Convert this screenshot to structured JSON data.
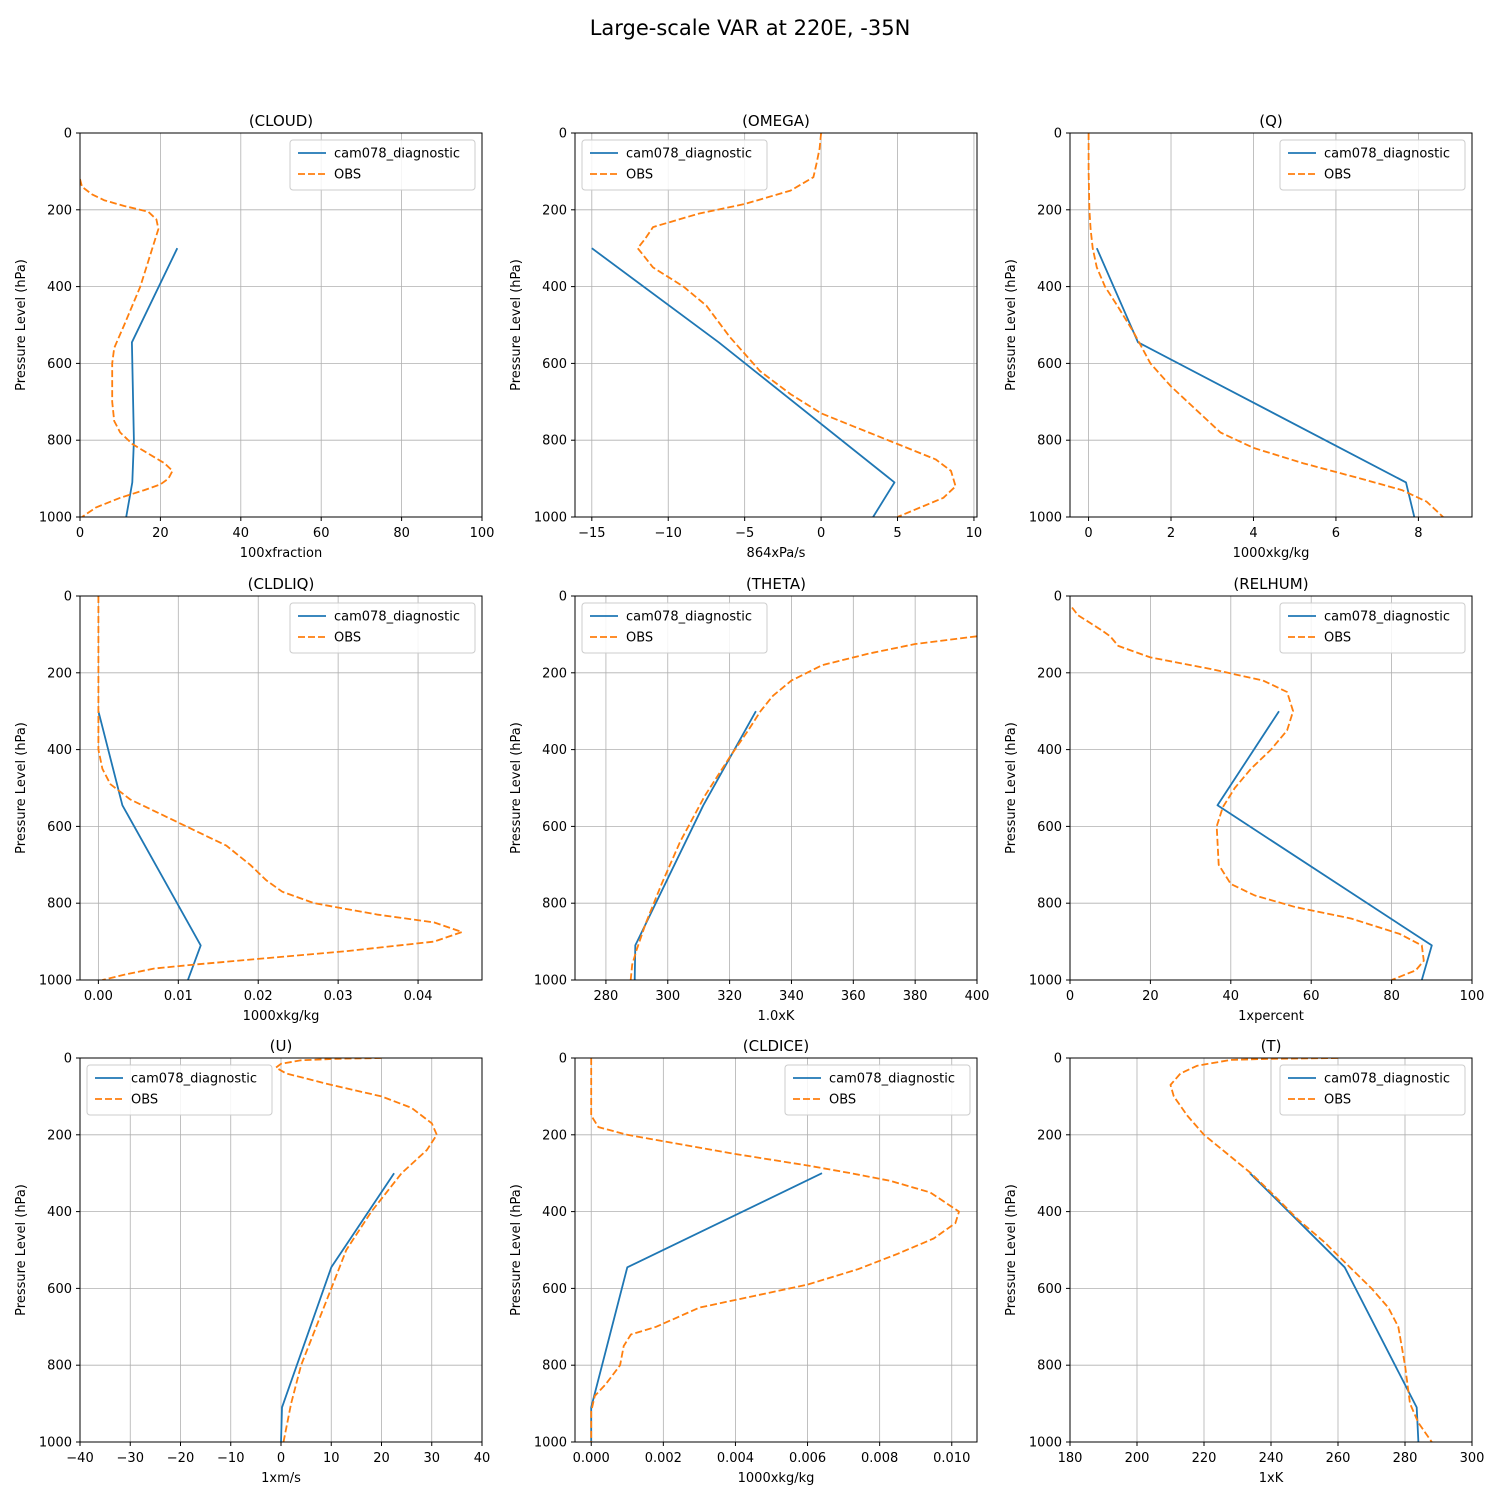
{
  "figure": {
    "title": "Large-scale VAR at 220E, -35N"
  },
  "colors": {
    "model": "#1f77b4",
    "obs": "#ff7f0e",
    "grid": "#b0b0b0"
  },
  "chart_data": [
    {
      "type": "line",
      "title": "(CLOUD)",
      "xlabel": "100xfraction",
      "ylabel": "Pressure Level (hPa)",
      "xlim": [
        0,
        100
      ],
      "ylim": [
        1000,
        0
      ],
      "xticks": [
        0,
        20,
        40,
        60,
        80,
        100
      ],
      "xtick_labels": [
        "0",
        "20",
        "40",
        "60",
        "80",
        "100"
      ],
      "yticks": [
        0,
        200,
        400,
        600,
        800,
        1000
      ],
      "ytick_labels": [
        "0",
        "200",
        "400",
        "600",
        "800",
        "1000"
      ],
      "grid": true,
      "legend": "upper right",
      "series": [
        {
          "name": "cam078_diagnostic",
          "style": "solid",
          "x": [
            24.2,
            12.9,
            13.4,
            13.0,
            11.5
          ],
          "y": [
            300,
            545,
            800,
            910,
            1000
          ]
        },
        {
          "name": "OBS",
          "style": "dashed",
          "x": [
            0.0,
            0.5,
            3,
            6,
            11,
            17,
            19,
            19.5,
            15,
            11,
            8.5,
            8,
            8,
            8.5,
            10,
            13,
            17,
            21,
            23,
            22,
            20,
            16,
            10,
            4,
            0.5
          ],
          "y": [
            120,
            140,
            160,
            175,
            190,
            205,
            225,
            250,
            400,
            500,
            560,
            600,
            700,
            750,
            780,
            810,
            835,
            860,
            880,
            900,
            915,
            930,
            950,
            975,
            1000
          ]
        }
      ]
    },
    {
      "type": "line",
      "title": "(OMEGA)",
      "xlabel": "864xPa/s",
      "ylabel": "Pressure Level (hPa)",
      "xlim": [
        -16.1,
        10.2
      ],
      "ylim": [
        1000,
        0
      ],
      "xticks": [
        -15,
        -10,
        -5,
        0,
        5,
        10
      ],
      "xtick_labels": [
        "−15",
        "−10",
        "−5",
        "0",
        "5",
        "10"
      ],
      "yticks": [
        0,
        200,
        400,
        600,
        800,
        1000
      ],
      "ytick_labels": [
        "0",
        "200",
        "400",
        "600",
        "800",
        "1000"
      ],
      "grid": true,
      "legend": "upper left",
      "series": [
        {
          "name": "cam078_diagnostic",
          "style": "solid",
          "x": [
            -15.0,
            -6.7,
            4.8,
            3.4
          ],
          "y": [
            300,
            545,
            910,
            1000
          ]
        },
        {
          "name": "OBS",
          "style": "dashed",
          "x": [
            0.0,
            -0.1,
            -0.3,
            -0.5,
            -2.0,
            -5.0,
            -8.0,
            -11.0,
            -11.5,
            -12.0,
            -11.0,
            -9.0,
            -7.5,
            -6.0,
            -4.0,
            -2.0,
            0.0,
            2.5,
            5.0,
            7.5,
            8.5,
            8.8,
            8.0,
            6.5,
            5.0
          ],
          "y": [
            0,
            40,
            80,
            115,
            150,
            185,
            210,
            245,
            275,
            300,
            350,
            400,
            450,
            530,
            620,
            680,
            730,
            770,
            810,
            850,
            880,
            920,
            950,
            975,
            1000
          ]
        }
      ]
    },
    {
      "type": "line",
      "title": "(Q)",
      "xlabel": "1000xkg/kg",
      "ylabel": "Pressure Level (hPa)",
      "xlim": [
        -0.45,
        9.3
      ],
      "ylim": [
        1000,
        0
      ],
      "xticks": [
        0,
        2,
        4,
        6,
        8
      ],
      "xtick_labels": [
        "0",
        "2",
        "4",
        "6",
        "8"
      ],
      "yticks": [
        0,
        200,
        400,
        600,
        800,
        1000
      ],
      "ytick_labels": [
        "0",
        "200",
        "400",
        "600",
        "800",
        "1000"
      ],
      "grid": true,
      "legend": "upper right",
      "series": [
        {
          "name": "cam078_diagnostic",
          "style": "solid",
          "x": [
            0.2,
            1.2,
            7.7,
            7.9
          ],
          "y": [
            300,
            545,
            910,
            1000
          ]
        },
        {
          "name": "OBS",
          "style": "dashed",
          "x": [
            0.0,
            0.0,
            0.02,
            0.05,
            0.1,
            0.2,
            0.4,
            0.7,
            1.1,
            1.5,
            2.0,
            2.6,
            3.2,
            4.0,
            5.2,
            6.6,
            7.6,
            8.2,
            8.6
          ],
          "y": [
            0,
            100,
            200,
            250,
            300,
            350,
            400,
            450,
            520,
            600,
            660,
            720,
            780,
            820,
            860,
            900,
            930,
            960,
            1000
          ]
        }
      ]
    },
    {
      "type": "line",
      "title": "(CLDLIQ)",
      "xlabel": "1000xkg/kg",
      "ylabel": "Pressure Level (hPa)",
      "xlim": [
        -0.0023,
        0.048
      ],
      "ylim": [
        1000,
        0
      ],
      "xticks": [
        0,
        0.01,
        0.02,
        0.03,
        0.04
      ],
      "xtick_labels": [
        "0.00",
        "0.01",
        "0.02",
        "0.03",
        "0.04"
      ],
      "yticks": [
        0,
        200,
        400,
        600,
        800,
        1000
      ],
      "ytick_labels": [
        "0",
        "200",
        "400",
        "600",
        "800",
        "1000"
      ],
      "grid": true,
      "legend": "upper right",
      "series": [
        {
          "name": "cam078_diagnostic",
          "style": "solid",
          "x": [
            0.0,
            0.003,
            0.0128,
            0.0112
          ],
          "y": [
            300,
            545,
            910,
            1000
          ]
        },
        {
          "name": "OBS",
          "style": "dashed",
          "x": [
            0.0,
            0.0,
            0.0,
            0.0005,
            0.0015,
            0.004,
            0.009,
            0.013,
            0.016,
            0.019,
            0.021,
            0.023,
            0.027,
            0.035,
            0.042,
            0.0455,
            0.042,
            0.031,
            0.02,
            0.012,
            0.007,
            0.0035,
            0.0005
          ],
          "y": [
            0,
            200,
            400,
            450,
            490,
            530,
            580,
            620,
            650,
            700,
            740,
            770,
            800,
            830,
            850,
            875,
            900,
            925,
            945,
            960,
            970,
            985,
            1000
          ]
        }
      ]
    },
    {
      "type": "line",
      "title": "(THETA)",
      "xlabel": "1.0xK",
      "ylabel": "Pressure Level (hPa)",
      "xlim": [
        270,
        400
      ],
      "ylim": [
        1000,
        0
      ],
      "xticks": [
        280,
        300,
        320,
        340,
        360,
        380,
        400
      ],
      "xtick_labels": [
        "280",
        "300",
        "320",
        "340",
        "360",
        "380",
        "400"
      ],
      "yticks": [
        0,
        200,
        400,
        600,
        800,
        1000
      ],
      "ytick_labels": [
        "0",
        "200",
        "400",
        "600",
        "800",
        "1000"
      ],
      "grid": true,
      "legend": "upper left",
      "series": [
        {
          "name": "cam078_diagnostic",
          "style": "solid",
          "x": [
            328.5,
            311.5,
            289.5,
            289.3
          ],
          "y": [
            300,
            545,
            910,
            1000
          ]
        },
        {
          "name": "OBS",
          "style": "dashed",
          "x": [
            400,
            380,
            365,
            350,
            340,
            334,
            330,
            326,
            320,
            312,
            304,
            298,
            293,
            290,
            288.5,
            288
          ],
          "y": [
            105,
            125,
            150,
            180,
            220,
            260,
            300,
            350,
            420,
            520,
            640,
            750,
            850,
            920,
            960,
            1000
          ]
        }
      ]
    },
    {
      "type": "line",
      "title": "(RELHUM)",
      "xlabel": "1xpercent",
      "ylabel": "Pressure Level (hPa)",
      "xlim": [
        0,
        100
      ],
      "ylim": [
        1000,
        0
      ],
      "xticks": [
        0,
        20,
        40,
        60,
        80,
        100
      ],
      "xtick_labels": [
        "0",
        "20",
        "40",
        "60",
        "80",
        "100"
      ],
      "yticks": [
        0,
        200,
        400,
        600,
        800,
        1000
      ],
      "ytick_labels": [
        "0",
        "200",
        "400",
        "600",
        "800",
        "1000"
      ],
      "grid": true,
      "legend": "upper right",
      "series": [
        {
          "name": "cam078_diagnostic",
          "style": "solid",
          "x": [
            52.0,
            36.7,
            90.0,
            87.5
          ],
          "y": [
            300,
            545,
            910,
            1000
          ]
        },
        {
          "name": "OBS",
          "style": "dashed",
          "x": [
            0.5,
            2,
            5,
            8,
            10,
            12,
            20,
            35,
            48,
            54,
            55.5,
            54,
            50,
            45,
            41,
            38,
            36.5,
            37,
            40,
            46,
            56,
            70,
            82,
            87.5,
            88,
            86,
            80
          ],
          "y": [
            30,
            50,
            70,
            90,
            105,
            130,
            160,
            190,
            220,
            250,
            300,
            350,
            400,
            450,
            500,
            550,
            600,
            700,
            750,
            780,
            810,
            840,
            880,
            910,
            950,
            975,
            1000
          ]
        }
      ]
    },
    {
      "type": "line",
      "title": "(U)",
      "xlabel": "1xm/s",
      "ylabel": "Pressure Level (hPa)",
      "xlim": [
        -40,
        40
      ],
      "ylim": [
        1000,
        0
      ],
      "xticks": [
        -40,
        -30,
        -20,
        -10,
        0,
        10,
        20,
        30,
        40
      ],
      "xtick_labels": [
        "−40",
        "−30",
        "−20",
        "−10",
        "0",
        "10",
        "20",
        "30",
        "40"
      ],
      "yticks": [
        0,
        200,
        400,
        600,
        800,
        1000
      ],
      "ytick_labels": [
        "0",
        "200",
        "400",
        "600",
        "800",
        "1000"
      ],
      "grid": true,
      "legend": "upper left",
      "series": [
        {
          "name": "cam078_diagnostic",
          "style": "solid",
          "x": [
            22.5,
            10.0,
            0.2,
            0.0
          ],
          "y": [
            300,
            545,
            910,
            1000
          ]
        },
        {
          "name": "OBS",
          "style": "dashed",
          "x": [
            20.0,
            11.0,
            4.0,
            0.0,
            -1.0,
            1.0,
            10.0,
            20.0,
            26.0,
            30.0,
            31.0,
            29.0,
            24.0,
            18.0,
            13.0,
            10.0,
            7.0,
            4.0,
            2.0,
            0.5
          ],
          "y": [
            0,
            2,
            6,
            15,
            25,
            40,
            70,
            100,
            130,
            170,
            200,
            240,
            300,
            400,
            500,
            600,
            700,
            800,
            900,
            1000
          ]
        }
      ]
    },
    {
      "type": "line",
      "title": "(CLDICE)",
      "xlabel": "1000xkg/kg",
      "ylabel": "Pressure Level (hPa)",
      "xlim": [
        -0.00045,
        0.0107
      ],
      "ylim": [
        1000,
        0
      ],
      "xticks": [
        0,
        0.002,
        0.004,
        0.006,
        0.008,
        0.01
      ],
      "xtick_labels": [
        "0.000",
        "0.002",
        "0.004",
        "0.006",
        "0.008",
        "0.010"
      ],
      "yticks": [
        0,
        200,
        400,
        600,
        800,
        1000
      ],
      "ytick_labels": [
        "0",
        "200",
        "400",
        "600",
        "800",
        "1000"
      ],
      "grid": true,
      "legend": "upper right",
      "series": [
        {
          "name": "cam078_diagnostic",
          "style": "solid",
          "x": [
            0.0064,
            0.001,
            0.0,
            0.0
          ],
          "y": [
            300,
            545,
            910,
            1000
          ]
        },
        {
          "name": "OBS",
          "style": "dashed",
          "x": [
            0.0,
            0.0,
            0.0,
            0.0002,
            0.001,
            0.004,
            0.006,
            0.0072,
            0.0083,
            0.0094,
            0.0098,
            0.0102,
            0.0101,
            0.0095,
            0.0085,
            0.0074,
            0.006,
            0.0045,
            0.003,
            0.0018,
            0.0011,
            0.0009,
            0.0008,
            0.0004,
            0.0001,
            0.0,
            0.0
          ],
          "y": [
            0,
            100,
            150,
            180,
            200,
            250,
            280,
            300,
            320,
            350,
            375,
            400,
            430,
            470,
            510,
            550,
            590,
            620,
            650,
            700,
            720,
            750,
            800,
            850,
            880,
            920,
            1000
          ]
        }
      ]
    },
    {
      "type": "line",
      "title": "(T)",
      "xlabel": "1xK",
      "ylabel": "Pressure Level (hPa)",
      "xlim": [
        180,
        300
      ],
      "ylim": [
        1000,
        0
      ],
      "xticks": [
        180,
        200,
        220,
        240,
        260,
        280,
        300
      ],
      "xtick_labels": [
        "180",
        "200",
        "220",
        "240",
        "260",
        "280",
        "300"
      ],
      "yticks": [
        0,
        200,
        400,
        600,
        800,
        1000
      ],
      "ytick_labels": [
        "0",
        "200",
        "400",
        "600",
        "800",
        "1000"
      ],
      "grid": true,
      "legend": "upper right",
      "series": [
        {
          "name": "cam078_diagnostic",
          "style": "solid",
          "x": [
            233.7,
            262.0,
            283.5,
            284.0
          ],
          "y": [
            300,
            545,
            910,
            1000
          ]
        },
        {
          "name": "OBS",
          "style": "dashed",
          "x": [
            260,
            240,
            228,
            218,
            213,
            210,
            211,
            215,
            220,
            227,
            234,
            240,
            248,
            256,
            263,
            270,
            275,
            278,
            280,
            281.5,
            284,
            288
          ],
          "y": [
            0,
            2,
            5,
            20,
            40,
            70,
            100,
            150,
            200,
            250,
            300,
            350,
            420,
            480,
            540,
            600,
            650,
            700,
            800,
            900,
            950,
            1000
          ]
        }
      ]
    }
  ]
}
